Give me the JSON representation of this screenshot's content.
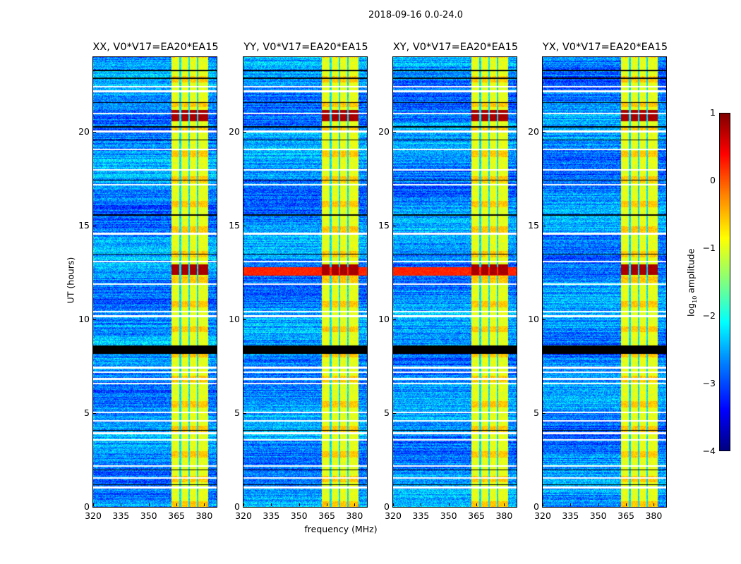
{
  "chart_data": {
    "type": "heatmap",
    "title": "2018-09-16 0.0-24.0",
    "xlabel": "frequency (MHz)",
    "ylabel": "UT (hours)",
    "xlim": [
      320,
      386.7
    ],
    "ylim": [
      0,
      24
    ],
    "xticks": [
      "320",
      "335",
      "350",
      "365",
      "380"
    ],
    "yticks": [
      "0",
      "5",
      "10",
      "15",
      "20"
    ],
    "panels": [
      {
        "title": "XX, V0*V17=EA20*EA15",
        "broadband_rfi": false
      },
      {
        "title": "YY, V0*V17=EA20*EA15",
        "broadband_rfi": true
      },
      {
        "title": "XY, V0*V17=EA20*EA15",
        "broadband_rfi": true
      },
      {
        "title": "YX, V0*V17=EA20*EA15",
        "broadband_rfi": false
      }
    ],
    "background_log_amplitude": -2.7,
    "rfi_band_mhz": [
      362,
      382
    ],
    "rfi_band_log_amplitude": -1.0,
    "rfi_band_gaps_mhz": [
      366.8,
      371.6,
      376.2
    ],
    "strong_rfi_ut_hours": [
      [
        12.4,
        12.95
      ],
      [
        20.6,
        21.2
      ]
    ],
    "strong_rfi_log_amplitude": 0.8,
    "flagged_white_ut_hours": [
      22.45,
      22.2,
      21.0,
      20.05,
      19.1,
      18.0,
      17.2,
      14.6,
      13.1,
      11.9,
      10.45,
      10.2,
      7.45,
      7.2,
      6.85,
      6.6,
      5.05,
      4.6,
      3.95,
      3.6,
      2.2,
      1.55,
      1.05
    ],
    "flagged_black_ut_hours": [
      23.3,
      22.9,
      21.6,
      20.3,
      19.6,
      17.45,
      15.6,
      13.5,
      4.1,
      2.0,
      1.2
    ],
    "flagged_black_band_ut_hours": [
      8.2,
      8.65
    ],
    "colorbar": {
      "label": "log10 amplitude",
      "label_main": "log",
      "label_sub": "10",
      "label_rest": " amplitude",
      "range": [
        -4,
        1
      ],
      "colormap": "jet",
      "ticks": [
        "1",
        "0",
        "−1",
        "−2",
        "−3",
        "−4"
      ]
    }
  }
}
